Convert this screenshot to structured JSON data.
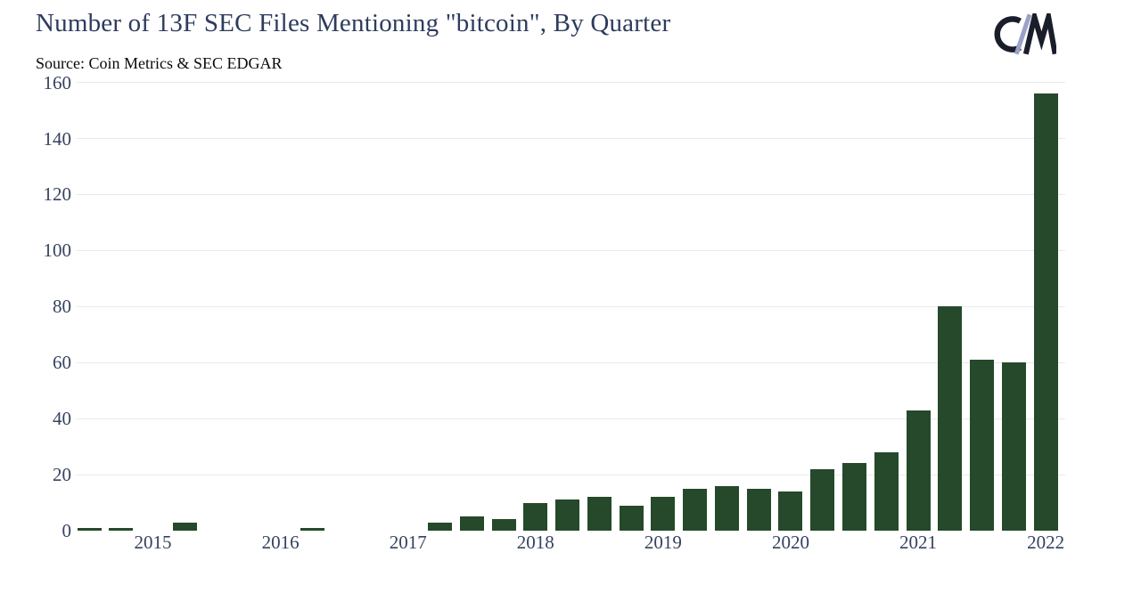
{
  "header": {
    "title": "Number of 13F SEC Files Mentioning \"bitcoin\", By Quarter",
    "source": "Source: Coin Metrics & SEC EDGAR",
    "logo_text": "C/M"
  },
  "colors": {
    "background": "#ffffff",
    "bar": "#25492a",
    "title": "#2d3c5d",
    "axis_labels": "#35425f",
    "gridline": "#eaeaea",
    "source_text": "#0a0a0a",
    "logo_dark": "#1a1e2b",
    "logo_slash": "#9aa2c8"
  },
  "chart_data": {
    "type": "bar",
    "title": "Number of 13F SEC Files Mentioning \"bitcoin\", By Quarter",
    "subtitle": "Source: Coin Metrics & SEC EDGAR",
    "xlabel": "",
    "ylabel": "",
    "ylim": [
      0,
      160
    ],
    "y_ticks": [
      0,
      20,
      40,
      60,
      80,
      100,
      120,
      140,
      160
    ],
    "grid": "horizontal",
    "legend": "none",
    "categories": [
      "2014 Q3",
      "2014 Q4",
      "2015 Q1",
      "2015 Q2",
      "2015 Q3",
      "2015 Q4",
      "2016 Q1",
      "2016 Q2",
      "2016 Q3",
      "2016 Q4",
      "2017 Q1",
      "2017 Q2",
      "2017 Q3",
      "2017 Q4",
      "2018 Q1",
      "2018 Q2",
      "2018 Q3",
      "2018 Q4",
      "2019 Q1",
      "2019 Q2",
      "2019 Q3",
      "2019 Q4",
      "2020 Q1",
      "2020 Q2",
      "2020 Q3",
      "2020 Q4",
      "2021 Q1",
      "2021 Q2",
      "2021 Q3",
      "2021 Q4",
      "2022 Q1"
    ],
    "values": [
      1,
      1,
      0,
      3,
      0,
      0,
      0,
      1,
      0,
      0,
      0,
      3,
      5,
      4,
      10,
      11,
      12,
      9,
      12,
      15,
      16,
      15,
      14,
      22,
      24,
      28,
      43,
      80,
      61,
      60,
      156
    ],
    "x_year_ticks": [
      {
        "label": "2015",
        "index": 2
      },
      {
        "label": "2016",
        "index": 6
      },
      {
        "label": "2017",
        "index": 10
      },
      {
        "label": "2018",
        "index": 14
      },
      {
        "label": "2019",
        "index": 18
      },
      {
        "label": "2020",
        "index": 22
      },
      {
        "label": "2021",
        "index": 26
      },
      {
        "label": "2022",
        "index": 30
      }
    ]
  }
}
